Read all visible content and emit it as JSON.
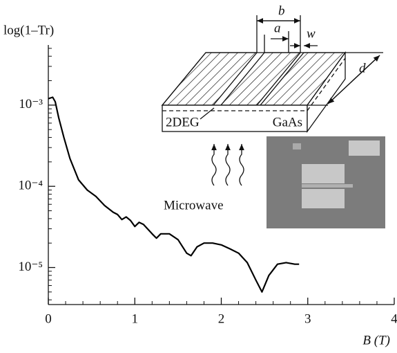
{
  "chart_data": {
    "type": "line",
    "y_label": "log(1–Tr)",
    "x_label": "B (T)",
    "log_y": true,
    "color": "#000000",
    "xlim": [
      0,
      4
    ],
    "xticks": [
      0,
      1,
      2,
      3,
      4
    ],
    "ylim": [
      3.5e-06,
      0.0055
    ],
    "yticks": [
      {
        "value": 0.001,
        "label": "10⁻³"
      },
      {
        "value": 0.0001,
        "label": "10⁻⁴"
      },
      {
        "value": 1e-05,
        "label": "10⁻⁵"
      }
    ],
    "x": [
      0,
      0.05,
      0.08,
      0.12,
      0.18,
      0.25,
      0.35,
      0.45,
      0.55,
      0.65,
      0.75,
      0.8,
      0.85,
      0.9,
      0.95,
      1.0,
      1.05,
      1.1,
      1.2,
      1.25,
      1.3,
      1.4,
      1.5,
      1.6,
      1.65,
      1.72,
      1.8,
      1.9,
      2.0,
      2.1,
      2.2,
      2.3,
      2.4,
      2.47,
      2.55,
      2.65,
      2.75,
      2.85,
      2.9
    ],
    "values": [
      0.0012,
      0.00125,
      0.0011,
      0.0007,
      0.0004,
      0.00022,
      0.00012,
      9e-05,
      7.5e-05,
      5.8e-05,
      4.8e-05,
      4.5e-05,
      3.9e-05,
      4.2e-05,
      3.8e-05,
      3.2e-05,
      3.6e-05,
      3.4e-05,
      2.6e-05,
      2.3e-05,
      2.6e-05,
      2.6e-05,
      2.2e-05,
      1.5e-05,
      1.4e-05,
      1.8e-05,
      2e-05,
      2e-05,
      1.9e-05,
      1.7e-05,
      1.5e-05,
      1.15e-05,
      7e-06,
      5e-06,
      8e-06,
      1.1e-05,
      1.15e-05,
      1.1e-05,
      1.1e-05
    ],
    "annotations": [
      "b",
      "a",
      "w",
      "d",
      "2DEG",
      "GaAs",
      "Microwave"
    ]
  }
}
